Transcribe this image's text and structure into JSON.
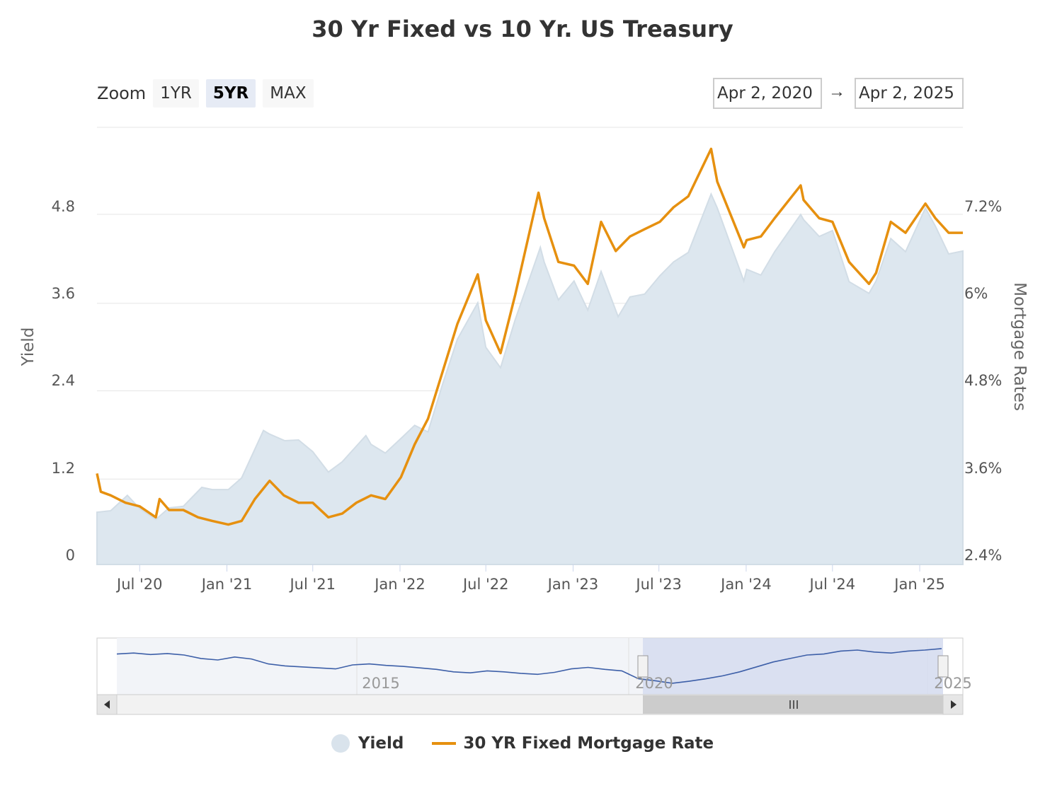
{
  "title": "30 Yr Fixed vs 10 Yr. US Treasury",
  "zoom": {
    "label": "Zoom",
    "buttons": [
      "1YR",
      "5YR",
      "MAX"
    ],
    "active": "5YR"
  },
  "range": {
    "from": "Apr 2, 2020",
    "arrow": "→",
    "to": "Apr 2, 2025"
  },
  "legend": {
    "yield": "Yield",
    "mortgage": "30 YR Fixed Mortgage Rate"
  },
  "colors": {
    "yield_fill": "#dde7ef",
    "mortgage_line": "#e6900f",
    "navigator_line": "#3d5fa8",
    "navigator_mask": "#d4daee"
  },
  "navigator": {
    "labels": [
      "2015",
      "2020",
      "2025"
    ]
  },
  "chart_data": {
    "type": "area",
    "title": "30 Yr Fixed vs 10 Yr. US Treasury",
    "x_tick_labels": [
      "Jul '20",
      "Jan '21",
      "Jul '21",
      "Jan '22",
      "Jul '22",
      "Jan '23",
      "Jul '23",
      "Jan '24",
      "Jul '24",
      "Jan '25"
    ],
    "y_left": {
      "label": "Yield",
      "ticks": [
        "0",
        "1.2",
        "2.4",
        "3.6",
        "4.8"
      ],
      "range": [
        0,
        6.0
      ]
    },
    "y_right": {
      "label": "Mortgage Rates",
      "ticks": [
        "2.4%",
        "3.6%",
        "4.8%",
        "6%",
        "7.2%"
      ],
      "range": [
        2.4,
        8.4
      ]
    },
    "x_range": [
      "2020-04-02",
      "2025-04-02"
    ],
    "grid": true,
    "legend_position": "bottom",
    "series": [
      {
        "name": "Yield",
        "type": "area",
        "axis": "left",
        "points": [
          [
            "2020-04-02",
            0.62
          ],
          [
            "2020-05-01",
            0.64
          ],
          [
            "2020-06-05",
            0.85
          ],
          [
            "2020-07-01",
            0.67
          ],
          [
            "2020-08-04",
            0.52
          ],
          [
            "2020-09-01",
            0.68
          ],
          [
            "2020-10-01",
            0.7
          ],
          [
            "2020-11-09",
            0.96
          ],
          [
            "2020-12-01",
            0.93
          ],
          [
            "2021-01-04",
            0.93
          ],
          [
            "2021-02-01",
            1.09
          ],
          [
            "2021-03-19",
            1.74
          ],
          [
            "2021-04-01",
            1.69
          ],
          [
            "2021-05-03",
            1.6
          ],
          [
            "2021-06-01",
            1.61
          ],
          [
            "2021-07-01",
            1.45
          ],
          [
            "2021-08-03",
            1.17
          ],
          [
            "2021-09-01",
            1.31
          ],
          [
            "2021-10-21",
            1.67
          ],
          [
            "2021-11-01",
            1.55
          ],
          [
            "2021-12-01",
            1.43
          ],
          [
            "2022-01-03",
            1.63
          ],
          [
            "2022-02-01",
            1.81
          ],
          [
            "2022-03-01",
            1.72
          ],
          [
            "2022-04-01",
            2.38
          ],
          [
            "2022-05-02",
            2.99
          ],
          [
            "2022-06-14",
            3.49
          ],
          [
            "2022-07-01",
            2.88
          ],
          [
            "2022-08-01",
            2.6
          ],
          [
            "2022-09-01",
            3.26
          ],
          [
            "2022-10-24",
            4.25
          ],
          [
            "2022-11-01",
            4.05
          ],
          [
            "2022-12-01",
            3.53
          ],
          [
            "2023-01-03",
            3.79
          ],
          [
            "2023-02-01",
            3.39
          ],
          [
            "2023-03-01",
            3.92
          ],
          [
            "2023-04-06",
            3.3
          ],
          [
            "2023-05-01",
            3.57
          ],
          [
            "2023-06-01",
            3.61
          ],
          [
            "2023-07-03",
            3.86
          ],
          [
            "2023-08-01",
            4.05
          ],
          [
            "2023-09-01",
            4.18
          ],
          [
            "2023-10-19",
            4.98
          ],
          [
            "2023-11-01",
            4.79
          ],
          [
            "2023-12-27",
            3.79
          ],
          [
            "2024-01-02",
            3.95
          ],
          [
            "2024-02-01",
            3.87
          ],
          [
            "2024-03-01",
            4.19
          ],
          [
            "2024-04-25",
            4.7
          ],
          [
            "2024-05-01",
            4.63
          ],
          [
            "2024-06-03",
            4.4
          ],
          [
            "2024-07-01",
            4.48
          ],
          [
            "2024-08-05",
            3.78
          ],
          [
            "2024-09-16",
            3.62
          ],
          [
            "2024-10-01",
            3.79
          ],
          [
            "2024-11-01",
            4.37
          ],
          [
            "2024-12-02",
            4.19
          ],
          [
            "2025-01-13",
            4.79
          ],
          [
            "2025-02-03",
            4.54
          ],
          [
            "2025-03-03",
            4.16
          ],
          [
            "2025-04-02",
            4.2
          ]
        ]
      },
      {
        "name": "30 YR Fixed Mortgage Rate",
        "type": "line",
        "axis": "right",
        "points": [
          [
            "2020-04-02",
            3.55
          ],
          [
            "2020-04-10",
            3.3
          ],
          [
            "2020-05-01",
            3.25
          ],
          [
            "2020-06-01",
            3.15
          ],
          [
            "2020-07-01",
            3.1
          ],
          [
            "2020-08-04",
            2.95
          ],
          [
            "2020-08-12",
            3.2
          ],
          [
            "2020-09-01",
            3.05
          ],
          [
            "2020-10-01",
            3.05
          ],
          [
            "2020-11-01",
            2.95
          ],
          [
            "2020-12-01",
            2.9
          ],
          [
            "2021-01-04",
            2.85
          ],
          [
            "2021-02-01",
            2.9
          ],
          [
            "2021-03-01",
            3.2
          ],
          [
            "2021-04-01",
            3.45
          ],
          [
            "2021-05-01",
            3.25
          ],
          [
            "2021-06-01",
            3.15
          ],
          [
            "2021-07-01",
            3.15
          ],
          [
            "2021-08-03",
            2.95
          ],
          [
            "2021-09-01",
            3.0
          ],
          [
            "2021-10-01",
            3.15
          ],
          [
            "2021-11-01",
            3.25
          ],
          [
            "2021-12-01",
            3.2
          ],
          [
            "2022-01-03",
            3.5
          ],
          [
            "2022-02-01",
            3.95
          ],
          [
            "2022-03-01",
            4.3
          ],
          [
            "2022-04-01",
            4.95
          ],
          [
            "2022-05-02",
            5.6
          ],
          [
            "2022-06-14",
            6.28
          ],
          [
            "2022-07-01",
            5.65
          ],
          [
            "2022-08-01",
            5.2
          ],
          [
            "2022-09-01",
            6.0
          ],
          [
            "2022-10-20",
            7.4
          ],
          [
            "2022-11-01",
            7.05
          ],
          [
            "2022-12-01",
            6.45
          ],
          [
            "2023-01-03",
            6.4
          ],
          [
            "2023-02-01",
            6.15
          ],
          [
            "2023-03-01",
            7.0
          ],
          [
            "2023-04-01",
            6.6
          ],
          [
            "2023-05-01",
            6.8
          ],
          [
            "2023-06-01",
            6.9
          ],
          [
            "2023-07-03",
            7.0
          ],
          [
            "2023-08-01",
            7.2
          ],
          [
            "2023-09-01",
            7.35
          ],
          [
            "2023-10-19",
            8.0
          ],
          [
            "2023-11-01",
            7.55
          ],
          [
            "2023-12-27",
            6.65
          ],
          [
            "2024-01-02",
            6.75
          ],
          [
            "2024-02-01",
            6.8
          ],
          [
            "2024-03-01",
            7.05
          ],
          [
            "2024-04-25",
            7.5
          ],
          [
            "2024-05-01",
            7.3
          ],
          [
            "2024-06-03",
            7.05
          ],
          [
            "2024-07-01",
            7.0
          ],
          [
            "2024-08-05",
            6.45
          ],
          [
            "2024-09-16",
            6.15
          ],
          [
            "2024-10-01",
            6.3
          ],
          [
            "2024-11-01",
            7.0
          ],
          [
            "2024-12-02",
            6.85
          ],
          [
            "2025-01-13",
            7.25
          ],
          [
            "2025-02-03",
            7.05
          ],
          [
            "2025-03-03",
            6.85
          ],
          [
            "2025-04-02",
            6.85
          ]
        ]
      }
    ]
  }
}
